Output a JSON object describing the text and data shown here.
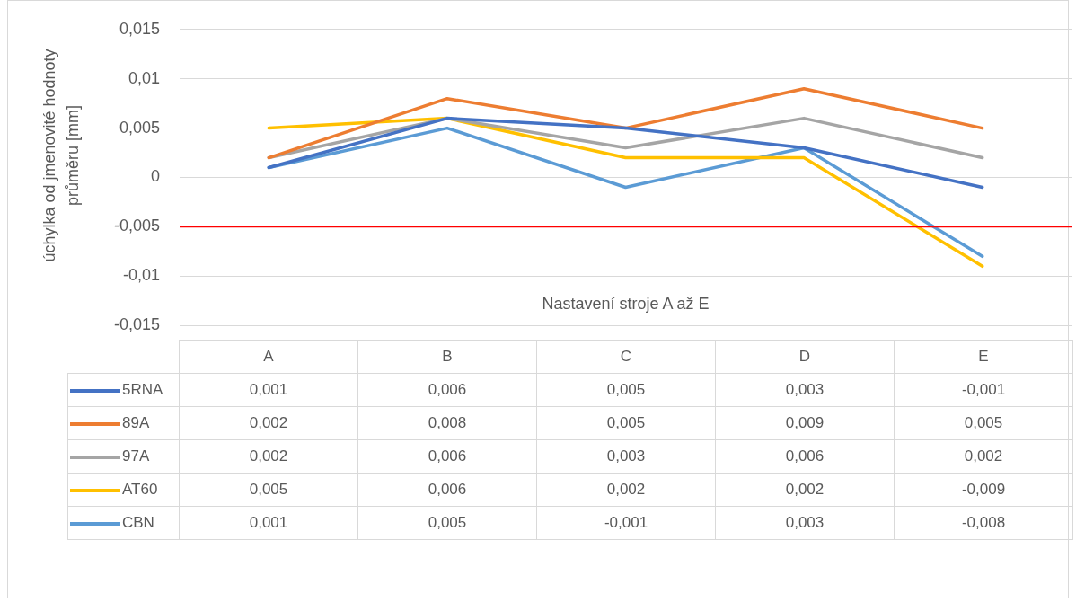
{
  "chart_data": {
    "type": "line",
    "xlabel": "Nastavení stroje A až E",
    "ylabel": "úchylka od jmenovité hodnoty průměru [mm]",
    "categories": [
      "A",
      "B",
      "C",
      "D",
      "E"
    ],
    "series": [
      {
        "name": "5RNA",
        "color": "#4472c4",
        "values": [
          0.001,
          0.006,
          0.005,
          0.003,
          -0.001
        ],
        "value_labels": [
          "0,001",
          "0,006",
          "0,005",
          "0,003",
          "-0,001"
        ]
      },
      {
        "name": "89A",
        "color": "#ed7d31",
        "values": [
          0.002,
          0.008,
          0.005,
          0.009,
          0.005
        ],
        "value_labels": [
          "0,002",
          "0,008",
          "0,005",
          "0,009",
          "0,005"
        ]
      },
      {
        "name": "97A",
        "color": "#a5a5a5",
        "values": [
          0.002,
          0.006,
          0.003,
          0.006,
          0.002
        ],
        "value_labels": [
          "0,002",
          "0,006",
          "0,003",
          "0,006",
          "0,002"
        ]
      },
      {
        "name": "AT60",
        "color": "#ffc000",
        "values": [
          0.005,
          0.006,
          0.002,
          0.002,
          -0.009
        ],
        "value_labels": [
          "0,005",
          "0,006",
          "0,002",
          "0,002",
          "-0,009"
        ]
      },
      {
        "name": "CBN",
        "color": "#5b9bd5",
        "values": [
          0.001,
          0.005,
          -0.001,
          0.003,
          -0.008
        ],
        "value_labels": [
          "0,001",
          "0,005",
          "-0,001",
          "0,003",
          "-0,008"
        ]
      }
    ],
    "ylim": [
      -0.015,
      0.015
    ],
    "yticks": [
      {
        "value": -0.015,
        "label": "-0,015"
      },
      {
        "value": -0.01,
        "label": "-0,01"
      },
      {
        "value": -0.005,
        "label": "-0,005"
      },
      {
        "value": 0,
        "label": "0"
      },
      {
        "value": 0.005,
        "label": "0,005"
      },
      {
        "value": 0.01,
        "label": "0,01"
      },
      {
        "value": 0.015,
        "label": "0,015"
      }
    ],
    "ref_lines": [
      {
        "axis": "y",
        "value": -0.005,
        "color": "#ff0000"
      }
    ],
    "grid": "y",
    "legend": "bottom",
    "marker": "none",
    "line_style": "solid"
  }
}
